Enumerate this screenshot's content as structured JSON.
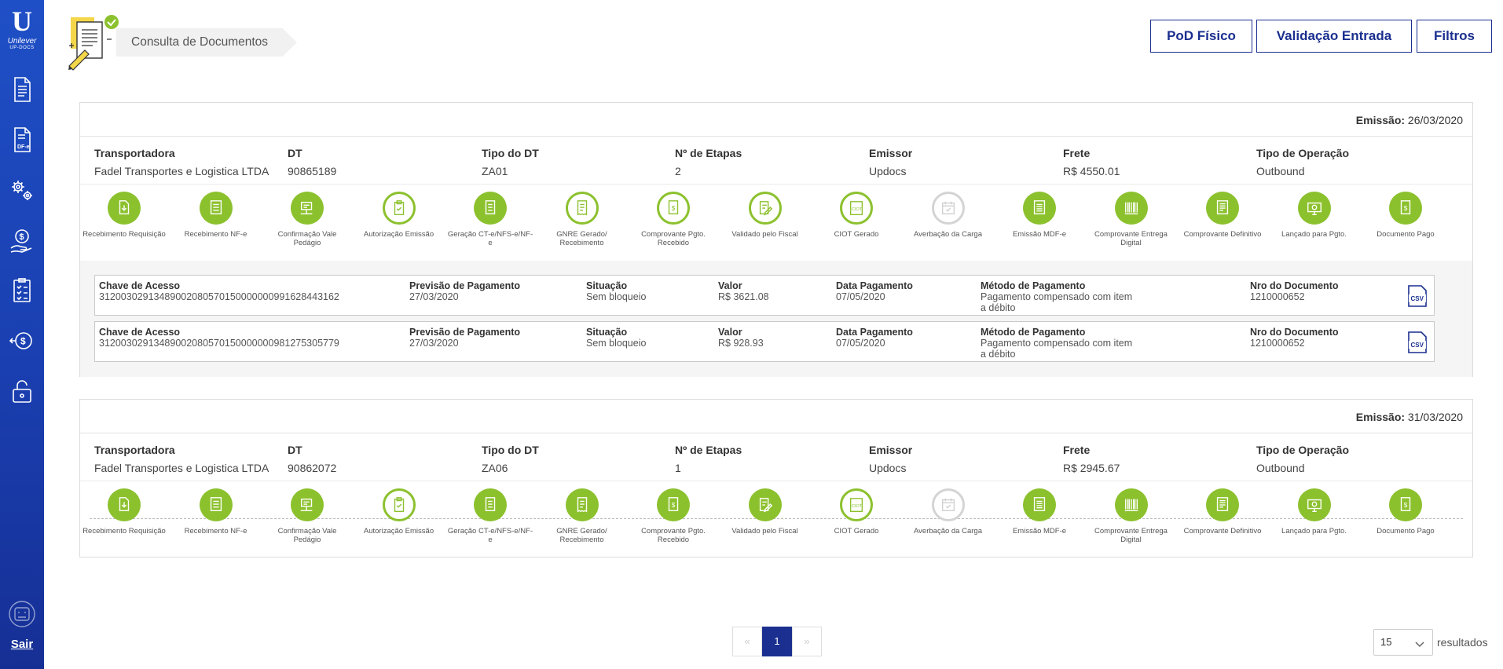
{
  "app": {
    "brand_letter": "U",
    "brand_name": "Unilever",
    "brand_sub": "UP-DOCS",
    "logout_label": "Sair"
  },
  "page": {
    "title": "Consulta de Documentos"
  },
  "toolbar": {
    "pod_label": "PoD Físico",
    "validacao_label": "Validação Entrada",
    "filtros_label": "Filtros"
  },
  "labels": {
    "emissao": "Emissão:",
    "transportadora": "Transportadora",
    "dt": "DT",
    "tipo_dt": "Tipo do DT",
    "etapas": "Nº de Etapas",
    "emissor": "Emissor",
    "frete": "Frete",
    "tipo_operacao": "Tipo de Operação",
    "chave": "Chave de Acesso",
    "previsao": "Previsão de Pagamento",
    "situacao": "Situação",
    "valor": "Valor",
    "data_pagamento": "Data Pagamento",
    "metodo": "Método de Pagamento",
    "nro_doc": "Nro do Documento"
  },
  "steps": [
    {
      "label": "Recebimento Requisição",
      "icon": "download-doc-icon"
    },
    {
      "label": "Recebimento NF-e",
      "icon": "invoice-icon"
    },
    {
      "label": "Confirmação Vale Pedágio",
      "icon": "toll-sign-icon"
    },
    {
      "label": "Autorização Emissão",
      "icon": "clipboard-check-icon"
    },
    {
      "label": "Geração CT-e/NFS-e/NF-e",
      "icon": "document-icon"
    },
    {
      "label": "GNRE Gerado/ Recebimento",
      "icon": "receipt-icon"
    },
    {
      "label": "Comprovante Pgto. Recebido",
      "icon": "payment-receipt-icon"
    },
    {
      "label": "Validado pelo Fiscal",
      "icon": "edit-doc-icon"
    },
    {
      "label": "CIOT Gerado",
      "icon": "ciot-icon"
    },
    {
      "label": "Averbação da Carga",
      "icon": "calendar-check-icon"
    },
    {
      "label": "Emissão MDF-e",
      "icon": "mdfe-icon"
    },
    {
      "label": "Comprovante Entrega Digital",
      "icon": "barcode-icon"
    },
    {
      "label": "Comprovante Definitivo",
      "icon": "final-receipt-icon"
    },
    {
      "label": "Lançado para Pgto.",
      "icon": "screen-money-icon"
    },
    {
      "label": "Documento Pago",
      "icon": "paid-doc-icon"
    }
  ],
  "cards": [
    {
      "emissao": "26/03/2020",
      "transportadora": "Fadel Transportes e Logistica LTDA",
      "dt": "90865189",
      "tipo_dt": "ZA01",
      "etapas": "2",
      "emissor": "Updocs",
      "frete": "R$ 4550.01",
      "tipo_operacao": "Outbound",
      "step_states": [
        "done",
        "done",
        "done",
        "ring",
        "done",
        "ring",
        "ring",
        "ring",
        "ring",
        "gray",
        "done",
        "done",
        "done",
        "done",
        "done"
      ],
      "documents": [
        {
          "chave": "31200302913489002080570150000000991628443162",
          "previsao": "27/03/2020",
          "situacao": "Sem bloqueio",
          "valor": "R$ 3621.08",
          "data_pagamento": "07/05/2020",
          "metodo_1": "Pagamento compensado com item",
          "metodo_2": "a débito",
          "nro_doc": "1210000652"
        },
        {
          "chave": "31200302913489002080570150000000981275305779",
          "previsao": "27/03/2020",
          "situacao": "Sem bloqueio",
          "valor": "R$ 928.93",
          "data_pagamento": "07/05/2020",
          "metodo_1": "Pagamento compensado com item",
          "metodo_2": "a débito",
          "nro_doc": "1210000652"
        }
      ]
    },
    {
      "emissao": "31/03/2020",
      "transportadora": "Fadel Transportes e Logistica LTDA",
      "dt": "90862072",
      "tipo_dt": "ZA06",
      "etapas": "1",
      "emissor": "Updocs",
      "frete": "R$ 2945.67",
      "tipo_operacao": "Outbound",
      "step_states": [
        "done",
        "done",
        "done",
        "ring",
        "done",
        "done",
        "done",
        "done",
        "ring",
        "gray",
        "done",
        "done",
        "done",
        "done",
        "done"
      ],
      "documents": []
    }
  ],
  "pagination": {
    "prev": "«",
    "current": "1",
    "next": "»",
    "page_size": "15",
    "results_label": "resultados"
  },
  "colors": {
    "sidebar": "#1f4fc6",
    "accent": "#1a2f8f",
    "step_done": "#8cc12e",
    "step_pending": "#d4d4d4"
  }
}
